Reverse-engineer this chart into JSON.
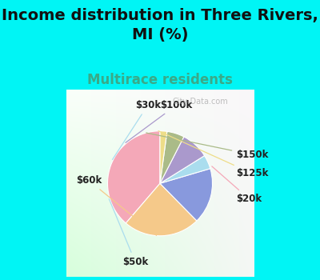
{
  "title": "Income distribution in Three Rivers,\nMI (%)",
  "subtitle": "Multirace residents",
  "title_fontsize": 14,
  "subtitle_fontsize": 12,
  "title_color": "#111111",
  "subtitle_color": "#3aaa88",
  "background_color": "#00f5f5",
  "labels": [
    "$20k",
    "$60k",
    "$50k",
    "$30k",
    "$100k",
    "$150k",
    "$125k"
  ],
  "sizes": [
    36,
    22,
    16,
    4,
    8,
    5,
    2
  ],
  "colors": [
    "#f4a8b8",
    "#f5c98a",
    "#8899dd",
    "#aaddee",
    "#aa99cc",
    "#aabb88",
    "#eedd88"
  ],
  "startangle": 90,
  "watermark": "City-Data.com",
  "label_fontsize": 8.5,
  "label_color": "#222222"
}
